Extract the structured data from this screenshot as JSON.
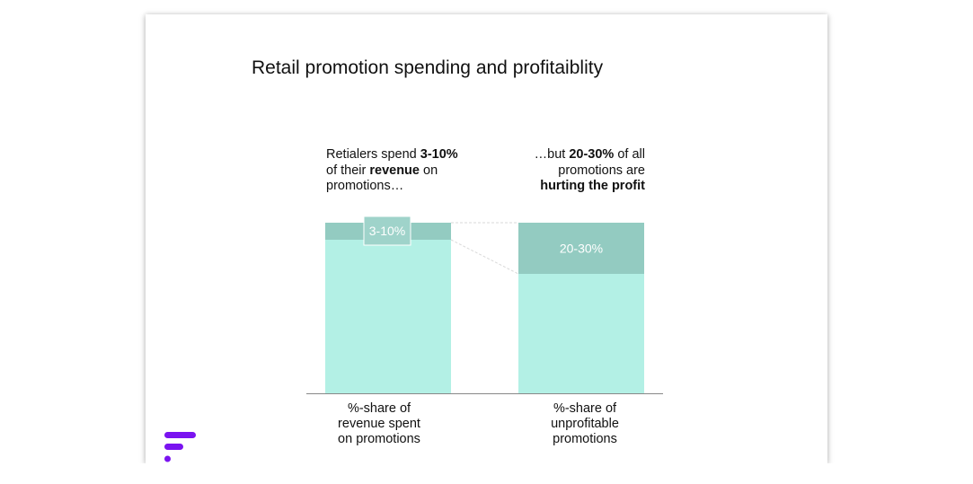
{
  "title": "Retail promotion spending and profitaiblity",
  "annotations": {
    "left": {
      "line1_pre": "Retialers spend ",
      "line1_bold": "3-10%",
      "line2_pre": "of their ",
      "line2_bold": "revenue",
      "line2_post": " on",
      "line3": "promotions…"
    },
    "right": {
      "line1_pre": "…but ",
      "line1_bold": "20-30%",
      "line1_post": " of all",
      "line2": "promotions are",
      "line3_bold": "hurting the profit"
    }
  },
  "chart_data": {
    "type": "bar",
    "stacked": true,
    "categories": [
      [
        "%-share of",
        "revenue spent",
        "on promotions"
      ],
      [
        "%-share of",
        "unprofitable",
        "promotions"
      ]
    ],
    "ylim": [
      0,
      100
    ],
    "series": [
      {
        "values": [
          90,
          70
        ]
      },
      {
        "values": [
          10,
          30
        ]
      }
    ],
    "highlight_labels": [
      "3-10%",
      "20-30%"
    ],
    "colors": {
      "base": "#b3f0e5",
      "highlight": "#93cbc1",
      "label_box": "#9fd3ca",
      "axis": "#888888",
      "connector": "#d9d9d9"
    }
  },
  "logo": {
    "color": "#7a13f0",
    "icon": "brand-logo-icon"
  }
}
